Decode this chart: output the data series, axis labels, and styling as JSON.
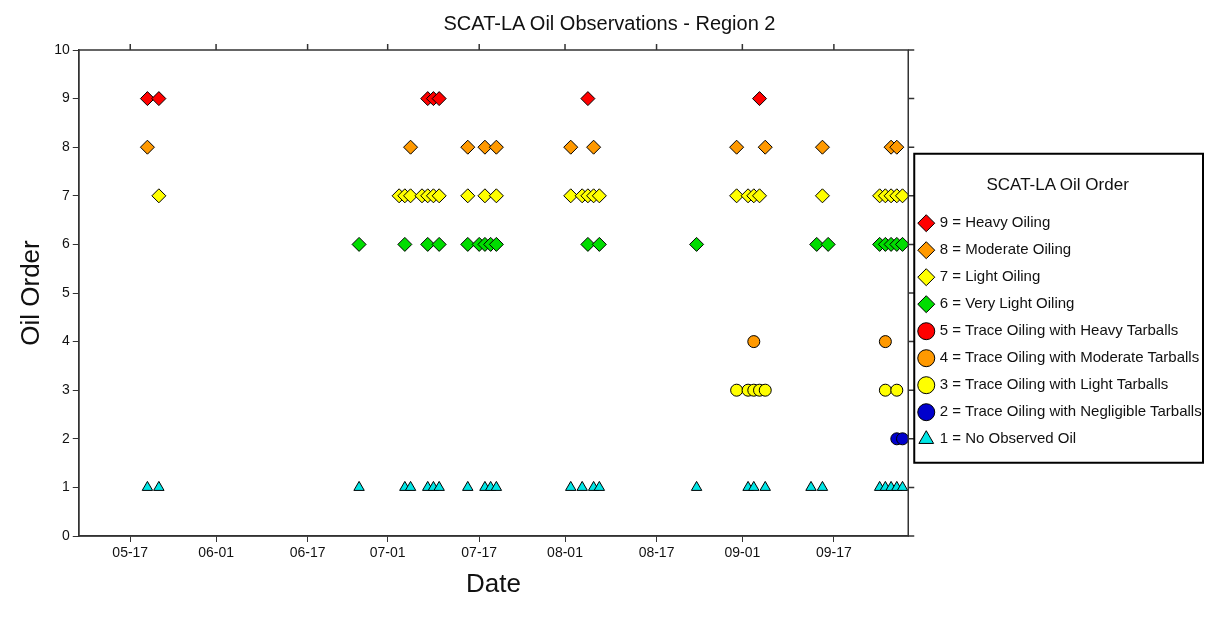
{
  "chart_data": {
    "type": "scatter",
    "title": "SCAT-LA Oil Observations - Region 2",
    "xlabel": "Date",
    "ylabel": "Oil Order",
    "legend_title": "SCAT-LA Oil Order",
    "legend": "right",
    "grid": false,
    "xlim": [
      "--05-08",
      "--09-30"
    ],
    "xticks": [
      {
        "value": "--05-17",
        "label": "05-17"
      },
      {
        "value": "--06-01",
        "label": "06-01"
      },
      {
        "value": "--06-17",
        "label": "06-17"
      },
      {
        "value": "--07-01",
        "label": "07-01"
      },
      {
        "value": "--07-17",
        "label": "07-17"
      },
      {
        "value": "--08-01",
        "label": "08-01"
      },
      {
        "value": "--08-17",
        "label": "08-17"
      },
      {
        "value": "--09-01",
        "label": "09-01"
      },
      {
        "value": "--09-17",
        "label": "09-17"
      }
    ],
    "ylim": [
      0,
      10
    ],
    "yticks": [
      0,
      1,
      2,
      3,
      4,
      5,
      6,
      7,
      8,
      9,
      10
    ],
    "series": [
      {
        "name": "9 = Heavy Oiling",
        "color": "#ff0000",
        "marker": "diamond",
        "x": [
          "--05-20",
          "--05-22",
          "--07-08",
          "--07-09",
          "--07-10",
          "--08-05",
          "--09-04"
        ],
        "values": [
          9,
          9,
          9,
          9,
          9,
          9,
          9
        ]
      },
      {
        "name": "8 = Moderate Oiling",
        "color": "#ff9900",
        "marker": "diamond",
        "x": [
          "--05-20",
          "--07-05",
          "--07-15",
          "--07-18",
          "--07-20",
          "--08-02",
          "--08-06",
          "--08-31",
          "--09-05",
          "--09-15",
          "--09-27",
          "--09-28"
        ],
        "values": [
          8,
          8,
          8,
          8,
          8,
          8,
          8,
          8,
          8,
          8,
          8,
          8
        ]
      },
      {
        "name": "7 = Light Oiling",
        "color": "#ffff00",
        "marker": "diamond",
        "x": [
          "--05-22",
          "--07-03",
          "--07-04",
          "--07-05",
          "--07-07",
          "--07-08",
          "--07-09",
          "--07-10",
          "--07-15",
          "--07-18",
          "--07-20",
          "--08-02",
          "--08-04",
          "--08-05",
          "--08-06",
          "--08-07",
          "--08-31",
          "--09-02",
          "--09-03",
          "--09-04",
          "--09-15",
          "--09-25",
          "--09-26",
          "--09-27",
          "--09-28",
          "--09-29"
        ],
        "values": [
          7,
          7,
          7,
          7,
          7,
          7,
          7,
          7,
          7,
          7,
          7,
          7,
          7,
          7,
          7,
          7,
          7,
          7,
          7,
          7,
          7,
          7,
          7,
          7,
          7,
          7
        ]
      },
      {
        "name": "6 = Very Light Oiling",
        "color": "#00dd00",
        "marker": "diamond",
        "x": [
          "--06-26",
          "--07-04",
          "--07-08",
          "--07-10",
          "--07-15",
          "--07-17",
          "--07-18",
          "--07-19",
          "--07-20",
          "--08-05",
          "--08-07",
          "--08-24",
          "--09-14",
          "--09-16",
          "--09-25",
          "--09-26",
          "--09-27",
          "--09-28",
          "--09-29"
        ],
        "values": [
          6,
          6,
          6,
          6,
          6,
          6,
          6,
          6,
          6,
          6,
          6,
          6,
          6,
          6,
          6,
          6,
          6,
          6,
          6
        ]
      },
      {
        "name": "5 = Trace Oiling with Heavy Tarballs",
        "color": "#ff0000",
        "marker": "circle"
      },
      {
        "name": "4 = Trace Oiling with Moderate Tarballs",
        "color": "#ff9900",
        "marker": "circle",
        "x": [
          "--09-03",
          "--09-26"
        ],
        "values": [
          4,
          4
        ]
      },
      {
        "name": "3 = Trace Oiling with Light Tarballs",
        "color": "#ffff00",
        "marker": "circle",
        "x": [
          "--08-31",
          "--09-02",
          "--09-03",
          "--09-04",
          "--09-05",
          "--09-26",
          "--09-28"
        ],
        "values": [
          3,
          3,
          3,
          3,
          3,
          3,
          3
        ]
      },
      {
        "name": "2 = Trace Oiling with Negligible Tarballs",
        "color": "#0000cc",
        "marker": "circle",
        "x": [
          "--09-28",
          "--09-29"
        ],
        "values": [
          2,
          2
        ]
      },
      {
        "name": "1 = No Observed Oil",
        "color": "#00e5e5",
        "marker": "triangle",
        "x": [
          "--05-20",
          "--05-22",
          "--06-26",
          "--07-04",
          "--07-05",
          "--07-08",
          "--07-09",
          "--07-10",
          "--07-15",
          "--07-18",
          "--07-19",
          "--07-20",
          "--08-02",
          "--08-04",
          "--08-06",
          "--08-07",
          "--08-24",
          "--09-02",
          "--09-03",
          "--09-05",
          "--09-13",
          "--09-15",
          "--09-25",
          "--09-26",
          "--09-27",
          "--09-28",
          "--09-29"
        ],
        "values": [
          1,
          1,
          1,
          1,
          1,
          1,
          1,
          1,
          1,
          1,
          1,
          1,
          1,
          1,
          1,
          1,
          1,
          1,
          1,
          1,
          1,
          1,
          1,
          1,
          1,
          1,
          1
        ]
      }
    ]
  }
}
